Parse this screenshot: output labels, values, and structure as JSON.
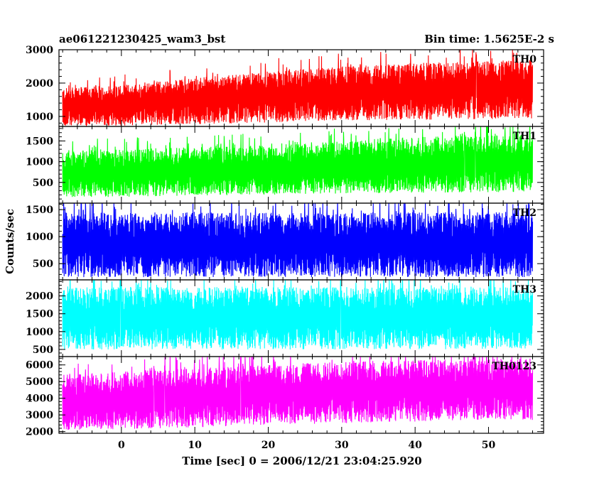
{
  "header": {
    "title": "ae061221230425_wam3_bst",
    "bin_time": "Bin time: 1.5625E-2 s"
  },
  "chart_data": {
    "type": "line",
    "title": "ae061221230425_wam3_bst",
    "xlabel": "Time [sec] 0 = 2006/12/21 23:04:25.920",
    "ylabel": "Counts/sec",
    "xlim": [
      -8.5,
      57.5
    ],
    "x_ticks": [
      0,
      10,
      20,
      30,
      40,
      50
    ],
    "x_range_data": [
      -8,
      56
    ],
    "grid": false,
    "panels": [
      {
        "name": "TH0",
        "color": "#ff0000",
        "ylim": [
          700,
          3000
        ],
        "yticks": [
          1000,
          2000,
          3000
        ],
        "trend_x": [
          -8,
          0,
          10,
          20,
          30,
          40,
          56
        ],
        "upper_envelope": [
          1850,
          1950,
          2150,
          2350,
          2500,
          2600,
          2700
        ],
        "lower_envelope": [
          700,
          720,
          760,
          820,
          880,
          900,
          930
        ]
      },
      {
        "name": "TH1",
        "color": "#00ff00",
        "ylim": [
          0,
          1850
        ],
        "yticks": [
          500,
          1000,
          1500
        ],
        "trend_x": [
          -8,
          0,
          10,
          20,
          30,
          40,
          56
        ],
        "upper_envelope": [
          1250,
          1300,
          1350,
          1400,
          1500,
          1600,
          1650
        ],
        "lower_envelope": [
          150,
          150,
          180,
          200,
          230,
          250,
          270
        ]
      },
      {
        "name": "TH2",
        "color": "#0000ff",
        "ylim": [
          200,
          1620
        ],
        "yticks": [
          500,
          1000,
          1500
        ],
        "trend_x": [
          -8,
          0,
          10,
          20,
          30,
          40,
          56
        ],
        "upper_envelope": [
          1450,
          1450,
          1450,
          1450,
          1450,
          1450,
          1450
        ],
        "lower_envelope": [
          250,
          250,
          250,
          250,
          250,
          250,
          250
        ]
      },
      {
        "name": "TH3",
        "color": "#00ffff",
        "ylim": [
          300,
          2450
        ],
        "yticks": [
          500,
          1000,
          1500,
          2000
        ],
        "trend_x": [
          -8,
          0,
          10,
          20,
          30,
          40,
          56
        ],
        "upper_envelope": [
          2250,
          2250,
          2250,
          2250,
          2250,
          2250,
          2250
        ],
        "lower_envelope": [
          500,
          500,
          500,
          500,
          500,
          500,
          500
        ]
      },
      {
        "name": "TH0123",
        "color": "#ff00ff",
        "ylim": [
          1900,
          6500
        ],
        "yticks": [
          2000,
          3000,
          4000,
          5000,
          6000
        ],
        "trend_x": [
          -8,
          0,
          10,
          20,
          30,
          40,
          56
        ],
        "upper_envelope": [
          5400,
          5600,
          5800,
          6000,
          6200,
          6300,
          6400
        ],
        "lower_envelope": [
          2100,
          2150,
          2250,
          2400,
          2500,
          2600,
          2700
        ]
      }
    ]
  }
}
